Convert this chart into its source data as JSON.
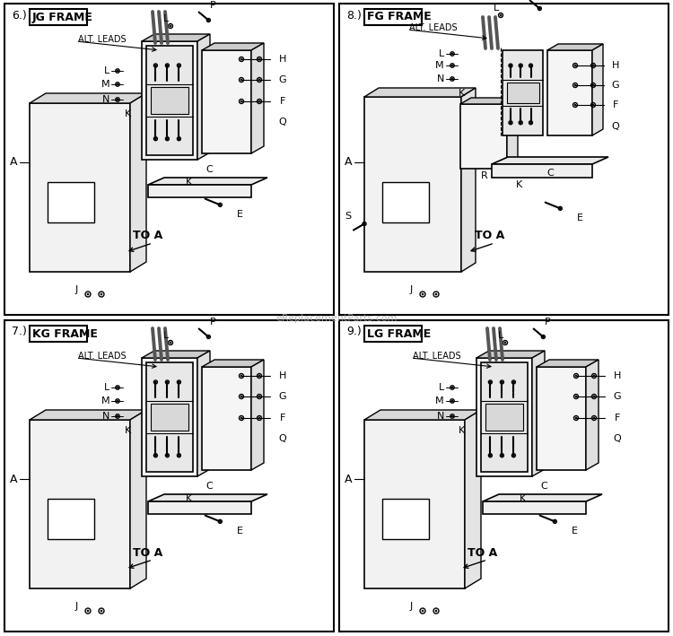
{
  "bg_color": "#ffffff",
  "border_color": "#000000",
  "line_color": "#000000",
  "text_color": "#000000",
  "watermark": "eReplacementParts.com",
  "panels": [
    {
      "id": "6",
      "title": "JG FRAME",
      "num": "6.)"
    },
    {
      "id": "7",
      "title": "KG FRAME",
      "num": "7.)"
    },
    {
      "id": "8",
      "title": "FG FRAME",
      "num": "8.)"
    },
    {
      "id": "9",
      "title": "LG FRAME",
      "num": "9.)"
    }
  ],
  "gray_face": "#f0f0f0",
  "gray_dark": "#d0d0d0",
  "gray_mid": "#e0e0e0",
  "cable_color": "#555555",
  "watermark_color": "#aaaaaa"
}
